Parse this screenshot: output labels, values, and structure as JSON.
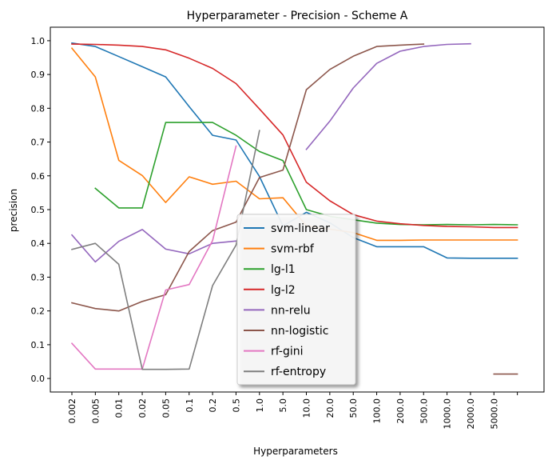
{
  "chart_data": {
    "type": "line",
    "title": "Hyperparameter - Precision - Scheme A",
    "xlabel": "Hyperparameters",
    "ylabel": "precision",
    "categories": [
      "0.002",
      "0.005",
      "0.01",
      "0.02",
      "0.05",
      "0.1",
      "0.2",
      "0.5",
      "1.0",
      "5.0",
      "10.0",
      "20.0",
      "50.0",
      "100.0",
      "200.0",
      "500.0",
      "1000.0",
      "2000.0",
      "5000.0",
      ""
    ],
    "yticks": [
      "0.0",
      "0.1",
      "0.2",
      "0.3",
      "0.4",
      "0.5",
      "0.6",
      "0.7",
      "0.8",
      "0.9",
      "1.0"
    ],
    "ylim": [
      -0.04,
      1.04
    ],
    "grid": false,
    "legend_position": "center",
    "series": [
      {
        "name": "svm-linear",
        "color": "#1f77b4",
        "values": [
          0.993,
          0.983,
          0.953,
          0.923,
          0.893,
          0.805,
          0.72,
          0.706,
          0.598,
          0.452,
          0.492,
          0.461,
          0.417,
          0.39,
          0.39,
          0.39,
          0.357,
          0.356,
          0.356,
          0.356
        ]
      },
      {
        "name": "svm-rbf",
        "color": "#ff7f0e",
        "values": [
          0.978,
          0.893,
          0.646,
          0.601,
          0.521,
          0.597,
          0.575,
          0.584,
          0.532,
          0.535,
          0.452,
          0.442,
          0.432,
          0.409,
          0.409,
          0.41,
          0.41,
          0.41,
          0.41,
          0.41
        ]
      },
      {
        "name": "lg-l1",
        "color": "#2ca02c",
        "values": [
          null,
          0.563,
          0.505,
          0.505,
          0.758,
          0.758,
          0.758,
          0.72,
          0.672,
          0.645,
          0.5,
          0.48,
          0.47,
          0.46,
          0.456,
          0.455,
          0.456,
          0.455,
          0.456,
          0.455
        ]
      },
      {
        "name": "lg-l2",
        "color": "#d62728",
        "values": [
          0.99,
          0.989,
          0.987,
          0.983,
          0.973,
          0.948,
          0.918,
          0.873,
          0.798,
          0.721,
          0.581,
          0.526,
          0.485,
          0.466,
          0.458,
          0.453,
          0.45,
          0.449,
          0.447,
          0.447
        ]
      },
      {
        "name": "nn-relu",
        "color": "#9467bd",
        "values": [
          0.425,
          0.345,
          0.406,
          0.441,
          0.383,
          0.369,
          0.4,
          0.407,
          null,
          null,
          0.678,
          0.762,
          0.86,
          0.933,
          0.969,
          0.983,
          0.989,
          0.991,
          null,
          null
        ]
      },
      {
        "name": "nn-logistic",
        "color": "#8c564b",
        "values": [
          0.224,
          0.207,
          0.2,
          0.228,
          0.248,
          0.376,
          0.438,
          0.463,
          0.595,
          0.617,
          0.855,
          0.915,
          0.954,
          0.983,
          0.987,
          0.99,
          null,
          null,
          0.013,
          0.013
        ]
      },
      {
        "name": "rf-gini",
        "color": "#e377c2",
        "values": [
          0.104,
          0.028,
          0.028,
          0.028,
          0.262,
          0.278,
          0.408,
          0.688,
          null,
          null,
          null,
          null,
          null,
          null,
          null,
          null,
          null,
          null,
          null,
          null
        ]
      },
      {
        "name": "rf-entropy",
        "color": "#7f7f7f",
        "values": [
          0.382,
          0.4,
          0.338,
          0.027,
          0.027,
          0.028,
          0.275,
          0.395,
          0.734,
          null,
          null,
          null,
          null,
          null,
          null,
          null,
          null,
          null,
          null,
          null
        ]
      }
    ]
  }
}
